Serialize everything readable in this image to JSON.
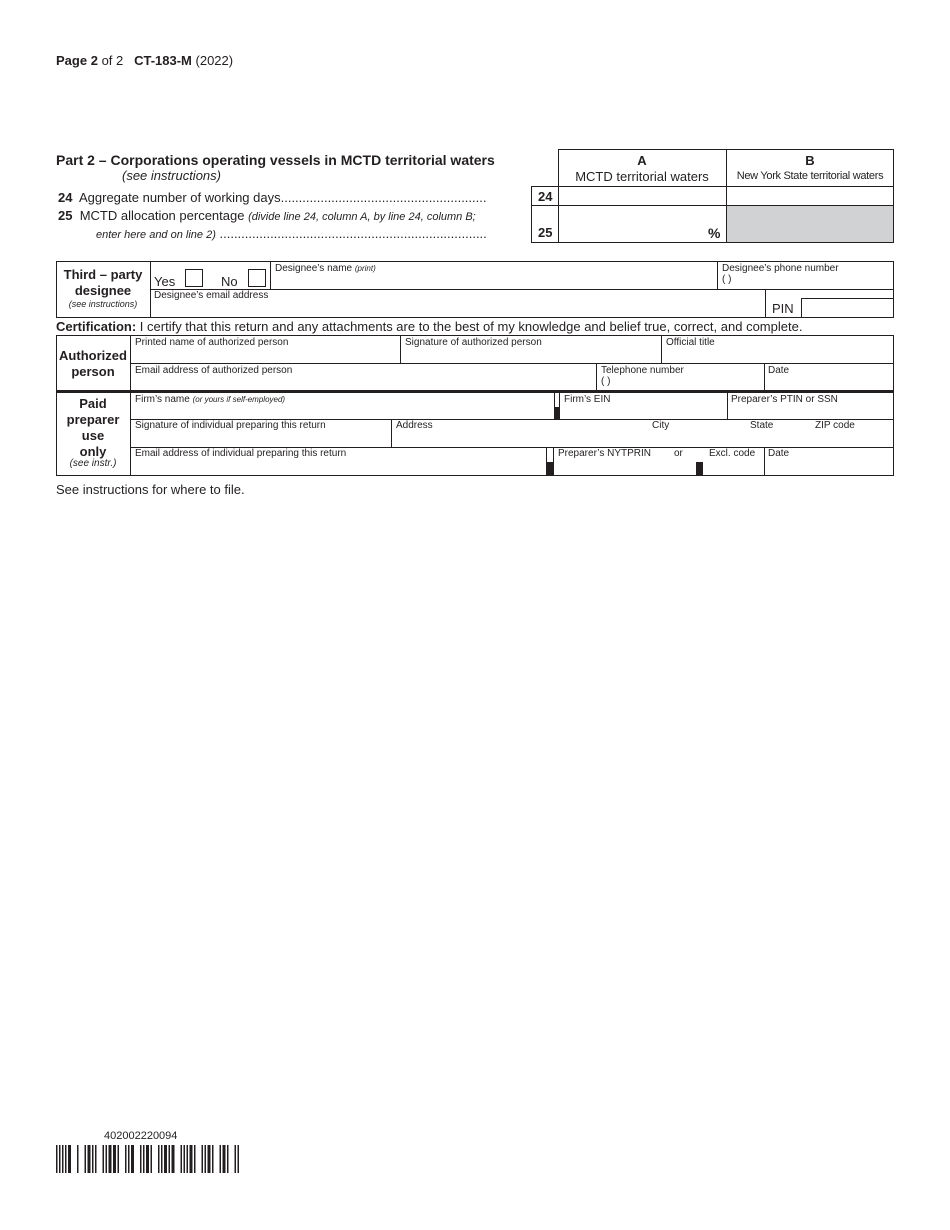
{
  "header": {
    "page_label": "Page",
    "page_num": "2",
    "of_label": "of 2",
    "form_id": "CT-183-M",
    "year": "(2022)"
  },
  "part2": {
    "title": "Part 2 – Corporations operating vessels in MCTD territorial waters",
    "subtitle": "(see instructions)",
    "col_a_letter": "A",
    "col_a_label": "MCTD territorial waters",
    "col_b_letter": "B",
    "col_b_label": "New York State territorial waters",
    "lines": [
      {
        "num": "24",
        "text": "Aggregate number of working days",
        "leader": ".........................................................",
        "value_a": "",
        "value_b": ""
      },
      {
        "num": "25",
        "text": "MCTD allocation percentage",
        "note": "(divide line 24, column A, by line 24, column B;",
        "note2": "enter here and on line 2)",
        "leader": "..........................................................................",
        "value_a": "",
        "suffix": "%"
      }
    ],
    "shaded_color": "#d1d2d4"
  },
  "designee": {
    "label1": "Third – party",
    "label2": "designee",
    "label3": "(see instructions)",
    "yes": "Yes",
    "no": "No",
    "name_label": "Designee’s name",
    "name_note": "(print)",
    "phone_label": "Designee’s phone number",
    "phone_paren": "(          )",
    "email_label": "Designee’s email address",
    "pin_label": "PIN"
  },
  "certification": {
    "label": "Certification:",
    "text": "I certify that this return and any attachments are to the best of my knowledge and belief true, correct, and complete."
  },
  "authorized": {
    "label1": "Authorized",
    "label2": "person",
    "printed_name": "Printed name of authorized person",
    "signature": "Signature of authorized person",
    "title": "Official title",
    "email": "Email address of authorized person",
    "phone": "Telephone number",
    "phone_paren": "(          )",
    "date": "Date"
  },
  "preparer": {
    "label1": "Paid",
    "label2": "preparer",
    "label3": "use",
    "label4": "only",
    "label5": "(see instr.)",
    "firm_name": "Firm’s name",
    "firm_note": "(or yours if self-employed)",
    "firm_ein": "Firm’s EIN",
    "ptin": "Preparer’s PTIN or SSN",
    "signature": "Signature of individual preparing this return",
    "address": "Address",
    "city": "City",
    "state": "State",
    "zip": "ZIP code",
    "email": "Email address of individual preparing this return",
    "nytprin": "Preparer’s NYTPRIN",
    "or": "or",
    "excl": "Excl. code",
    "date": "Date"
  },
  "footer_note": "See instructions for where to file.",
  "barcode": {
    "number": "402002220094"
  }
}
